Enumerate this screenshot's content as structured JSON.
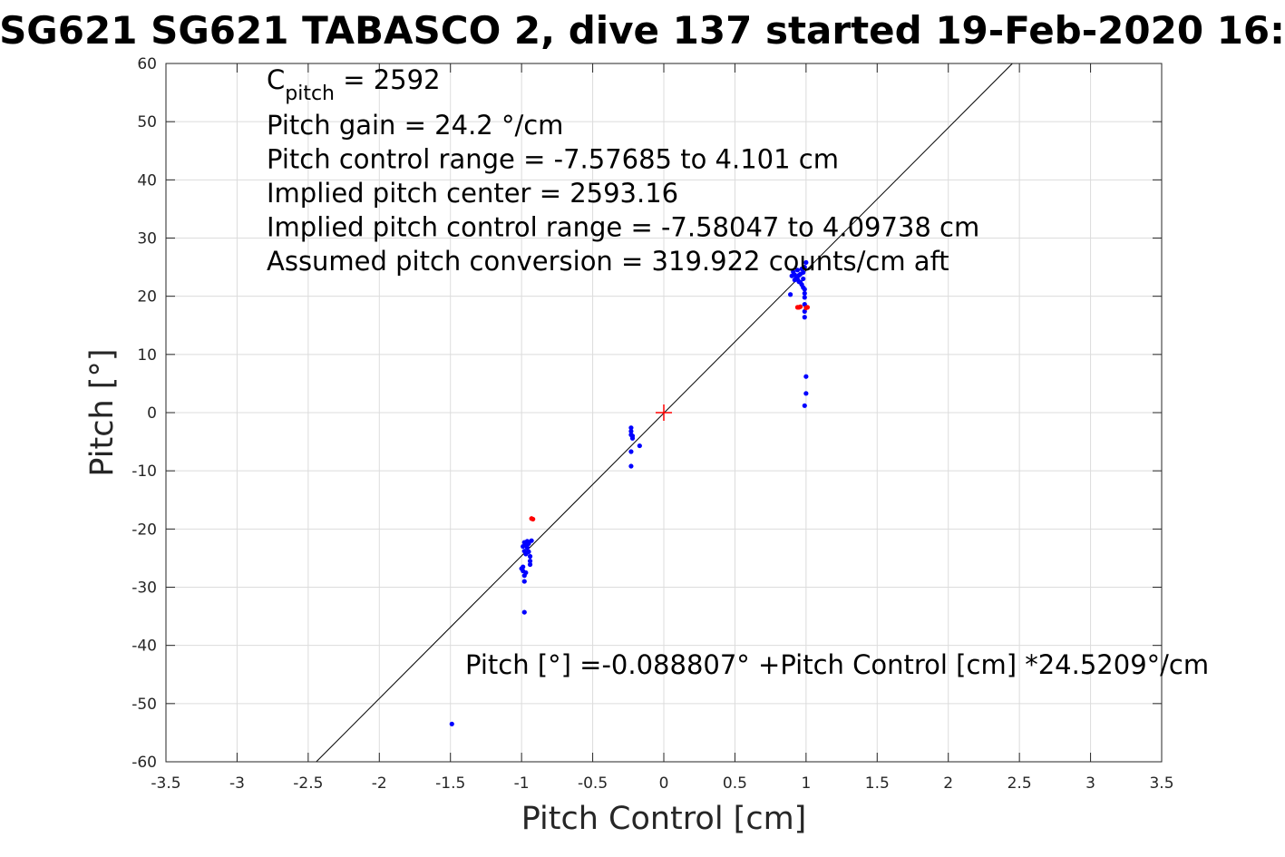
{
  "chart_data": {
    "type": "scatter",
    "title": "SG621 SG621 TABASCO 2, dive 137 started 19-Feb-2020 16:",
    "xlabel": "Pitch Control [cm]",
    "ylabel": "Pitch [°]",
    "xlim": [
      -3.5,
      3.5
    ],
    "ylim": [
      -60,
      60
    ],
    "x_ticks": [
      "-3.5",
      "-3",
      "-2.5",
      "-2",
      "-1.5",
      "-1",
      "-0.5",
      "0",
      "0.5",
      "1",
      "1.5",
      "2",
      "2.5",
      "3",
      "3.5"
    ],
    "y_ticks": [
      "60",
      "50",
      "40",
      "30",
      "20",
      "10",
      "0",
      "-10",
      "-20",
      "-30",
      "-40",
      "-50",
      "-60"
    ],
    "grid": true,
    "annotations": {
      "c_pitch_base": "C",
      "c_pitch_sub": "pitch",
      "c_pitch_value": " = 2592",
      "lines": [
        "Pitch gain = 24.2 °/cm",
        "Pitch control range = -7.57685 to 4.101 cm",
        "Implied pitch center = 2593.16",
        "Implied pitch control range = -7.58047 to 4.09738 cm",
        "Assumed pitch conversion = 319.922 counts/cm aft"
      ],
      "fit_equation": "Pitch [°] =-0.088807° +Pitch Control [cm] *24.5209°/cm"
    },
    "fit_line": {
      "intercept": -0.088807,
      "slope": 24.5209,
      "color": "#000000"
    },
    "center_marker": {
      "x": 0,
      "y": 0,
      "color": "#ff0000"
    },
    "series": [
      {
        "color": "#0000ff",
        "points": [
          [
            -1.49,
            -53.5
          ],
          [
            -0.98,
            -34.3
          ],
          [
            -0.99,
            -26.5
          ],
          [
            -0.99,
            -27.2
          ],
          [
            -0.98,
            -28.0
          ],
          [
            -0.98,
            -29.0
          ],
          [
            -0.97,
            -27.5
          ],
          [
            -1.0,
            -26.8
          ],
          [
            -0.98,
            -22.3
          ],
          [
            -0.97,
            -22.8
          ],
          [
            -0.96,
            -23.2
          ],
          [
            -0.98,
            -23.8
          ],
          [
            -0.97,
            -24.3
          ],
          [
            -0.95,
            -22.5
          ],
          [
            -0.95,
            -23.9
          ],
          [
            -0.94,
            -24.7
          ],
          [
            -0.94,
            -25.5
          ],
          [
            -0.94,
            -26.1
          ],
          [
            -0.93,
            -22.0
          ],
          [
            -0.96,
            -24.0
          ],
          [
            -0.99,
            -23.0
          ],
          [
            -0.96,
            -22.1
          ],
          [
            -0.23,
            -2.6
          ],
          [
            -0.23,
            -3.2
          ],
          [
            -0.23,
            -3.8
          ],
          [
            -0.22,
            -4.4
          ],
          [
            -0.22,
            -4.0
          ],
          [
            -0.23,
            -6.7
          ],
          [
            -0.23,
            -9.2
          ],
          [
            -0.17,
            -5.7
          ],
          [
            0.89,
            20.3
          ],
          [
            0.9,
            23.5
          ],
          [
            0.91,
            24.2
          ],
          [
            0.92,
            22.8
          ],
          [
            0.93,
            23.1
          ],
          [
            0.94,
            24.5
          ],
          [
            0.95,
            22.5
          ],
          [
            0.96,
            23.8
          ],
          [
            0.97,
            24.7
          ],
          [
            0.97,
            22.0
          ],
          [
            0.98,
            21.5
          ],
          [
            0.98,
            23.0
          ],
          [
            0.99,
            25.0
          ],
          [
            0.99,
            21.2
          ],
          [
            0.95,
            23.6
          ],
          [
            0.96,
            22.4
          ],
          [
            0.98,
            24.1
          ],
          [
            0.99,
            20.5
          ],
          [
            0.99,
            19.8
          ],
          [
            0.99,
            18.6
          ],
          [
            0.99,
            17.4
          ],
          [
            0.99,
            16.4
          ],
          [
            1.0,
            25.8
          ],
          [
            0.92,
            23.7
          ],
          [
            0.94,
            22.9
          ],
          [
            1.0,
            6.2
          ],
          [
            1.0,
            3.3
          ],
          [
            0.99,
            1.2
          ]
        ]
      },
      {
        "color": "#ff0000",
        "points": [
          [
            -0.93,
            -18.2
          ],
          [
            -0.92,
            -18.3
          ],
          [
            0.94,
            18.1
          ],
          [
            0.95,
            18.1
          ],
          [
            0.96,
            18.2
          ],
          [
            1.0,
            18.0
          ],
          [
            1.01,
            18.1
          ]
        ]
      }
    ]
  }
}
